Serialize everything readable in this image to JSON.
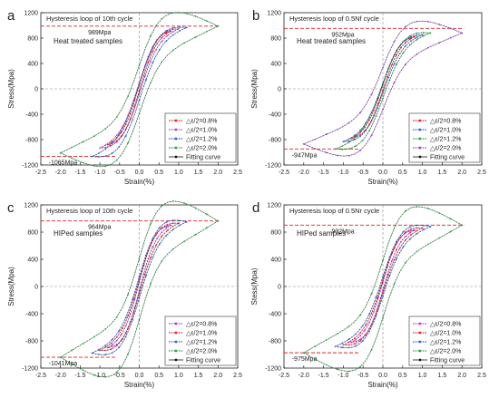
{
  "chart_data": [
    {
      "type": "line",
      "panel_letter": "a",
      "title": "Hysteresis loop of 10th cycle",
      "sample_label": "Heat treated samples",
      "xlabel": "Strain(%)",
      "ylabel": "Stress(Mpa)",
      "xlim": [
        -2.5,
        2.5
      ],
      "ylim": [
        -1200,
        1200
      ],
      "xticks": [
        "-2.5",
        "-2.0",
        "-1.5",
        "-1.0",
        "-0.5",
        "0.0",
        "0.5",
        "1.0",
        "1.5",
        "2.0",
        "2.5"
      ],
      "yticks": [
        "-1200",
        "-800",
        "-400",
        "0",
        "400",
        "800",
        "1200"
      ],
      "max_label": "989Mpa",
      "max_value": 989,
      "min_label": "-1065Mpa",
      "min_value": -1065,
      "legend_position": "bottom-right",
      "series": [
        {
          "name": "△ε/2=0.8%",
          "color": "#e8202a",
          "amp": 0.8,
          "ymax": 910,
          "ymin": -880,
          "width": 0.15
        },
        {
          "name": "△ε/2=1.0%",
          "color": "#c040c8",
          "amp": 1.0,
          "ymax": 945,
          "ymin": -930,
          "width": 0.25
        },
        {
          "name": "△ε/2=1.2%",
          "color": "#2f5fe0",
          "amp": 1.2,
          "ymax": 965,
          "ymin": -1065,
          "width": 0.35
        },
        {
          "name": "△ε/2=2.0%",
          "color": "#28a048",
          "amp": 2.0,
          "ymax": 989,
          "ymin": -1010,
          "width": 1.05
        }
      ],
      "fit_name": "Fitting curve"
    },
    {
      "type": "line",
      "panel_letter": "b",
      "title": "Hysteresis loop of 0.5Nf cycle",
      "sample_label": "Heat treated samples",
      "xlabel": "Strain(%)",
      "ylabel": "Stress(Mpa)",
      "xlim": [
        -2.5,
        2.5
      ],
      "ylim": [
        -1200,
        1200
      ],
      "xticks": [
        "-2.5",
        "-2.0",
        "-1.5",
        "-1.0",
        "-0.5",
        "0.0",
        "0.5",
        "1.0",
        "1.5",
        "2.0",
        "2.5"
      ],
      "yticks": [
        "-1200",
        "-800",
        "-400",
        "0",
        "400",
        "800",
        "1200"
      ],
      "max_label": "952Mpa",
      "max_value": 952,
      "min_label": "-947Mpa",
      "min_value": -947,
      "legend_position": "bottom-right",
      "series": [
        {
          "name": "△ε/2=0.8%",
          "color": "#e8202a",
          "amp": 0.8,
          "ymax": 820,
          "ymin": -780,
          "width": 0.15
        },
        {
          "name": "△ε/2=1.0%",
          "color": "#2f5fe0",
          "amp": 1.0,
          "ymax": 850,
          "ymin": -830,
          "width": 0.25
        },
        {
          "name": "△ε/2=1.2%",
          "color": "#28a048",
          "amp": 1.2,
          "ymax": 880,
          "ymin": -947,
          "width": 0.35
        },
        {
          "name": "△ε/2=2.0%",
          "color": "#9a3fd0",
          "amp": 2.0,
          "ymax": 880,
          "ymin": -870,
          "width": 1.05
        }
      ],
      "fit_name": "Fitting curve"
    },
    {
      "type": "line",
      "panel_letter": "c",
      "title": "Hysteresis loop of 10th cycle",
      "sample_label": "HIPed samples",
      "xlabel": "Strain(%)",
      "ylabel": "Stress(Mpa)",
      "xlim": [
        -2.5,
        2.5
      ],
      "ylim": [
        -1200,
        1200
      ],
      "xticks": [
        "-2.5",
        "-2.0",
        "-1.5",
        "-1.0",
        "-0.5",
        "0.0",
        "0.5",
        "1.0",
        "1.5",
        "2.0",
        "2.5"
      ],
      "yticks": [
        "-1200",
        "-800",
        "-400",
        "0",
        "400",
        "800",
        "1200"
      ],
      "max_label": "964Mpa",
      "max_value": 964,
      "min_label": "-1041Mpa",
      "min_value": -1041,
      "legend_position": "bottom-right",
      "series": [
        {
          "name": "△ε/2=0.8%",
          "color": "#9a3fd0",
          "amp": 0.8,
          "ymax": 900,
          "ymin": -900,
          "width": 0.2
        },
        {
          "name": "△ε/2=1.0%",
          "color": "#e8202a",
          "amp": 1.0,
          "ymax": 930,
          "ymin": -940,
          "width": 0.3
        },
        {
          "name": "△ε/2=1.2%",
          "color": "#2f5fe0",
          "amp": 1.2,
          "ymax": 950,
          "ymin": -980,
          "width": 0.45
        },
        {
          "name": "△ε/2=2.0%",
          "color": "#28a048",
          "amp": 2.0,
          "ymax": 964,
          "ymin": -1041,
          "width": 1.25
        }
      ],
      "fit_name": "Fitting curve"
    },
    {
      "type": "line",
      "panel_letter": "d",
      "title": "Hysteresis loop of 0.5Nr cycle",
      "sample_label": "HIPed samples",
      "xlabel": "Strain(%)",
      "ylabel": "Stess(Mpa)",
      "xlim": [
        -2.5,
        2.5
      ],
      "ylim": [
        -1200,
        1200
      ],
      "xticks": [
        "-2.5",
        "-2.0",
        "-1.5",
        "-1.0",
        "-0.5",
        "0.0",
        "0.5",
        "1.0",
        "1.5",
        "2.0",
        "2.5"
      ],
      "yticks": [
        "-1200",
        "-800",
        "-400",
        "0",
        "400",
        "800",
        "1200"
      ],
      "max_label": "902Mpa",
      "max_value": 902,
      "min_label": "-975Mpa",
      "min_value": -975,
      "legend_position": "bottom-right",
      "series": [
        {
          "name": "△ε/2=0.8%",
          "color": "#d030d0",
          "amp": 0.8,
          "ymax": 830,
          "ymin": -820,
          "width": 0.2
        },
        {
          "name": "△ε/2=1.0%",
          "color": "#e8202a",
          "amp": 1.0,
          "ymax": 860,
          "ymin": -860,
          "width": 0.3
        },
        {
          "name": "△ε/2=1.2%",
          "color": "#2f5fe0",
          "amp": 1.2,
          "ymax": 880,
          "ymin": -880,
          "width": 0.45
        },
        {
          "name": "△ε/2=2.0%",
          "color": "#28a048",
          "amp": 2.0,
          "ymax": 902,
          "ymin": -975,
          "width": 1.25
        }
      ],
      "fit_name": "Fitting curve"
    }
  ]
}
